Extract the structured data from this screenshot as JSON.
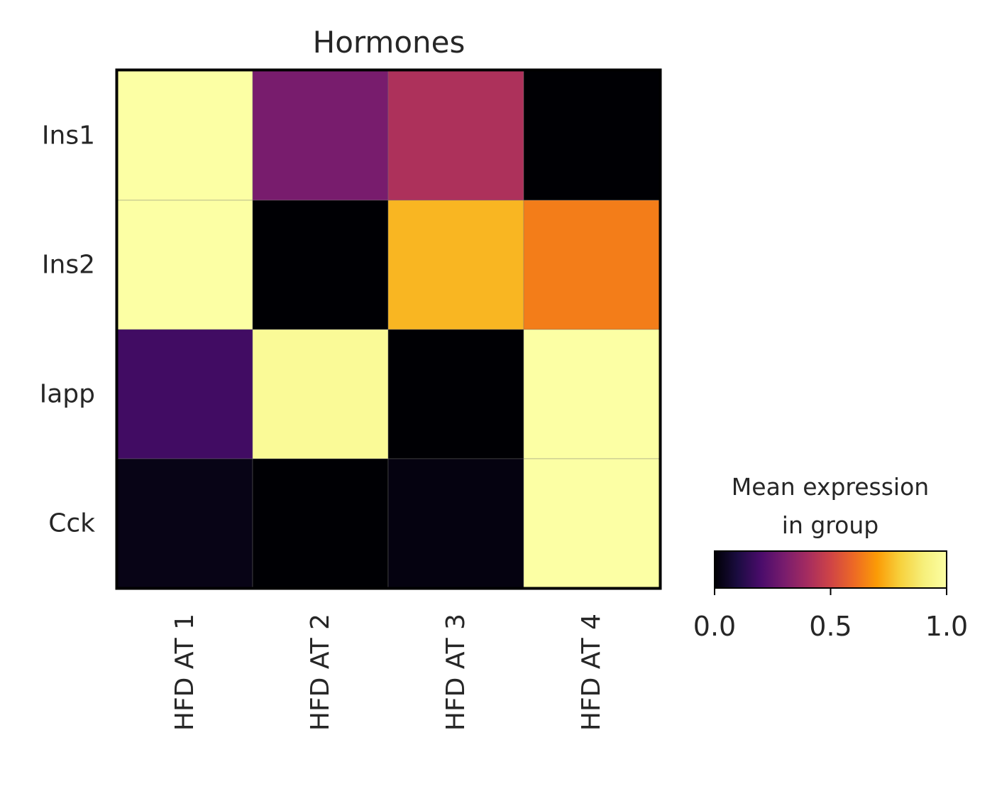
{
  "chart_data": {
    "type": "heatmap",
    "title": "Hormones",
    "rows": [
      "Ins1",
      "Ins2",
      "Iapp",
      "Cck"
    ],
    "columns": [
      "HFD AT 1",
      "HFD AT 2",
      "HFD AT 3",
      "HFD AT 4"
    ],
    "values": [
      [
        1.0,
        0.3,
        0.42,
        0.0
      ],
      [
        1.0,
        0.0,
        0.75,
        0.64
      ],
      [
        0.18,
        0.97,
        0.0,
        1.0
      ],
      [
        0.03,
        0.0,
        0.02,
        1.0
      ]
    ],
    "colormap": "inferno",
    "colorbar": {
      "label_line1": "Mean expression",
      "label_line2": "in group",
      "min": 0.0,
      "max": 1.0,
      "ticks": [
        0.0,
        0.5,
        1.0
      ],
      "tick_labels": [
        "0.0",
        "0.5",
        "1.0"
      ]
    }
  }
}
